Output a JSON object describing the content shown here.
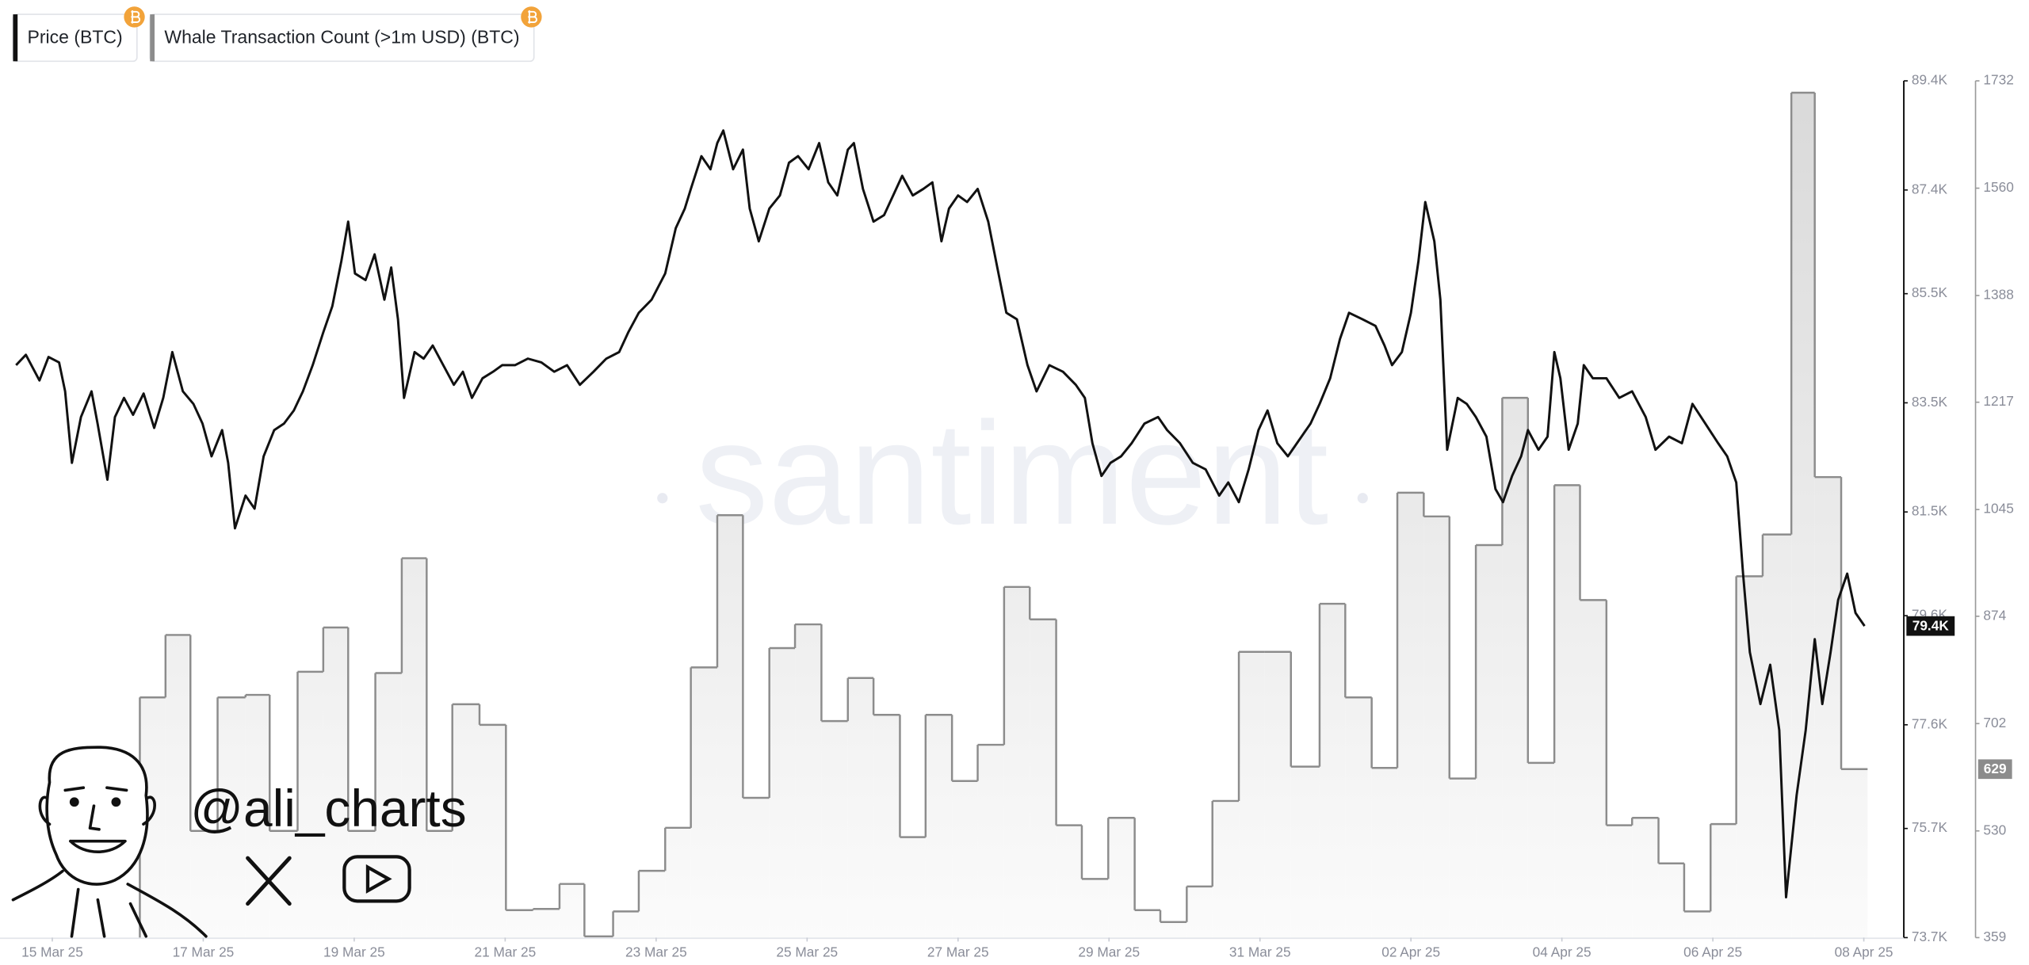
{
  "chart_data": {
    "type": "line",
    "legend": "top-left",
    "grid": false,
    "watermark": "santiment",
    "annotation": "@ali_charts",
    "xlim": [
      -0.52,
      24.53
    ],
    "xticks": [
      {
        "value": 0,
        "label": "15 Mar 25"
      },
      {
        "value": 2,
        "label": "17 Mar 25"
      },
      {
        "value": 4,
        "label": "19 Mar 25"
      },
      {
        "value": 6,
        "label": "21 Mar 25"
      },
      {
        "value": 8,
        "label": "23 Mar 25"
      },
      {
        "value": 10,
        "label": "25 Mar 25"
      },
      {
        "value": 12,
        "label": "27 Mar 25"
      },
      {
        "value": 14,
        "label": "29 Mar 25"
      },
      {
        "value": 16,
        "label": "31 Mar 25"
      },
      {
        "value": 18,
        "label": "02 Apr 25"
      },
      {
        "value": 20,
        "label": "04 Apr 25"
      },
      {
        "value": 22,
        "label": "06 Apr 25"
      },
      {
        "value": 24,
        "label": "08 Apr 25"
      }
    ],
    "ylim": [
      73.7,
      89.4
    ],
    "yticks": [
      {
        "value": 73.7,
        "label": "73.7K"
      },
      {
        "value": 75.7,
        "label": "75.7K"
      },
      {
        "value": 77.6,
        "label": "77.6K"
      },
      {
        "value": 79.6,
        "label": "79.6K"
      },
      {
        "value": 81.5,
        "label": "81.5K"
      },
      {
        "value": 83.5,
        "label": "83.5K"
      },
      {
        "value": 85.5,
        "label": "85.5K"
      },
      {
        "value": 87.4,
        "label": "87.4K"
      },
      {
        "value": 89.4,
        "label": "89.4K"
      }
    ],
    "y2lim": [
      359,
      1732
    ],
    "y2ticks": [
      359,
      530,
      702,
      874,
      1045,
      1217,
      1388,
      1560,
      1732
    ],
    "series": [
      {
        "name": "Price (BTC)",
        "color": "#111111",
        "axis": "y",
        "last_label": "79.4K",
        "x": [
          -0.48,
          -0.35,
          -0.17,
          -0.05,
          0.09,
          0.17,
          0.26,
          0.38,
          0.52,
          0.6,
          0.73,
          0.83,
          0.95,
          1.07,
          1.21,
          1.35,
          1.47,
          1.59,
          1.73,
          1.87,
          1.99,
          2.11,
          2.25,
          2.33,
          2.42,
          2.56,
          2.68,
          2.8,
          2.94,
          3.07,
          3.2,
          3.32,
          3.45,
          3.59,
          3.71,
          3.83,
          3.92,
          4.01,
          4.15,
          4.27,
          4.4,
          4.49,
          4.58,
          4.66,
          4.8,
          4.92,
          5.04,
          5.18,
          5.32,
          5.44,
          5.56,
          5.7,
          5.84,
          5.96,
          6.13,
          6.3,
          6.48,
          6.65,
          6.82,
          6.99,
          7.17,
          7.34,
          7.51,
          7.63,
          7.77,
          7.94,
          8.12,
          8.26,
          8.38,
          8.46,
          8.6,
          8.72,
          8.81,
          8.89,
          9.02,
          9.15,
          9.24,
          9.36,
          9.5,
          9.64,
          9.76,
          9.88,
          10.02,
          10.16,
          10.28,
          10.4,
          10.54,
          10.62,
          10.74,
          10.88,
          11.02,
          11.14,
          11.26,
          11.4,
          11.54,
          11.66,
          11.78,
          11.88,
          12.0,
          12.12,
          12.26,
          12.4,
          12.52,
          12.64,
          12.78,
          12.92,
          13.04,
          13.21,
          13.39,
          13.56,
          13.68,
          13.78,
          13.9,
          14.02,
          14.16,
          14.3,
          14.47,
          14.65,
          14.77,
          14.94,
          15.11,
          15.28,
          15.46,
          15.58,
          15.72,
          15.85,
          15.98,
          16.1,
          16.23,
          16.37,
          16.49,
          16.67,
          16.79,
          16.93,
          17.06,
          17.18,
          17.36,
          17.53,
          17.65,
          17.75,
          17.88,
          18.0,
          18.1,
          18.19,
          18.31,
          18.39,
          18.48,
          18.62,
          18.74,
          18.86,
          19.0,
          19.12,
          19.22,
          19.34,
          19.46,
          19.55,
          19.69,
          19.81,
          19.9,
          19.98,
          20.09,
          20.21,
          20.29,
          20.41,
          20.59,
          20.76,
          20.93,
          21.11,
          21.24,
          21.42,
          21.59,
          21.73,
          21.9,
          22.07,
          22.19,
          22.31,
          22.4,
          22.49,
          22.63,
          22.76,
          22.88,
          22.97,
          23.11,
          23.23,
          23.35,
          23.45,
          23.56,
          23.66,
          23.78,
          23.89,
          24.01
        ],
        "values": [
          84.19,
          84.38,
          83.91,
          84.34,
          84.24,
          83.71,
          82.4,
          83.24,
          83.71,
          83.12,
          82.09,
          83.24,
          83.59,
          83.28,
          83.67,
          83.04,
          83.59,
          84.43,
          83.71,
          83.48,
          83.12,
          82.52,
          83.0,
          82.4,
          81.2,
          81.8,
          81.56,
          82.52,
          83.0,
          83.12,
          83.36,
          83.71,
          84.19,
          84.79,
          85.27,
          86.1,
          86.82,
          85.87,
          85.75,
          86.22,
          85.39,
          85.98,
          85.03,
          83.59,
          84.43,
          84.31,
          84.55,
          84.19,
          83.83,
          84.07,
          83.59,
          83.95,
          84.07,
          84.19,
          84.19,
          84.31,
          84.24,
          84.07,
          84.19,
          83.83,
          84.07,
          84.31,
          84.43,
          84.79,
          85.15,
          85.39,
          85.87,
          86.7,
          87.06,
          87.42,
          88.02,
          87.78,
          88.26,
          88.49,
          87.78,
          88.14,
          87.06,
          86.46,
          87.06,
          87.3,
          87.9,
          88.02,
          87.78,
          88.26,
          87.54,
          87.3,
          88.14,
          88.26,
          87.42,
          86.82,
          86.94,
          87.3,
          87.66,
          87.3,
          87.42,
          87.54,
          86.46,
          87.06,
          87.3,
          87.18,
          87.42,
          86.82,
          85.98,
          85.15,
          85.03,
          84.19,
          83.71,
          84.19,
          84.07,
          83.83,
          83.59,
          82.76,
          82.16,
          82.4,
          82.52,
          82.76,
          83.12,
          83.24,
          83.0,
          82.76,
          82.4,
          82.28,
          81.8,
          82.04,
          81.68,
          82.28,
          83.0,
          83.36,
          82.76,
          82.52,
          82.76,
          83.12,
          83.48,
          83.95,
          84.67,
          85.15,
          85.03,
          84.91,
          84.55,
          84.19,
          84.43,
          85.15,
          86.1,
          87.18,
          86.46,
          85.39,
          82.64,
          83.59,
          83.48,
          83.24,
          82.88,
          81.92,
          81.68,
          82.16,
          82.52,
          83.0,
          82.64,
          82.88,
          84.43,
          83.95,
          82.64,
          83.12,
          84.19,
          83.95,
          83.95,
          83.59,
          83.71,
          83.24,
          82.64,
          82.88,
          82.76,
          83.48,
          83.12,
          82.76,
          82.52,
          82.04,
          80.37,
          78.93,
          77.98,
          78.7,
          77.5,
          74.44,
          76.31,
          77.5,
          79.17,
          77.98,
          78.93,
          79.89,
          80.37,
          79.65,
          79.41
        ]
      },
      {
        "name": "Whale Transaction Count (>1m USD) (BTC)",
        "color": "#8c8c8c",
        "axis": "y2",
        "step": true,
        "fill": true,
        "x": [
          1.16,
          1.5,
          1.83,
          2.19,
          2.56,
          2.88,
          3.25,
          3.59,
          3.92,
          4.28,
          4.63,
          4.96,
          5.3,
          5.66,
          6.01,
          6.37,
          6.72,
          7.05,
          7.43,
          7.77,
          8.12,
          8.46,
          8.81,
          9.15,
          9.5,
          9.84,
          10.19,
          10.54,
          10.88,
          11.23,
          11.57,
          11.92,
          12.26,
          12.61,
          12.95,
          13.3,
          13.64,
          13.99,
          14.34,
          14.68,
          15.03,
          15.37,
          15.72,
          16.06,
          16.41,
          16.79,
          17.13,
          17.48,
          17.82,
          18.17,
          18.51,
          18.86,
          19.21,
          19.55,
          19.9,
          20.24,
          20.59,
          20.93,
          21.28,
          21.62,
          21.97,
          22.31,
          22.66,
          23.04,
          23.35,
          23.7
        ],
        "values": [
          744,
          844,
          530,
          744,
          748,
          530,
          785,
          856,
          530,
          783,
          967,
          530,
          733,
          700,
          403,
          405,
          445,
          361,
          401,
          466,
          535,
          792,
          1036,
          583,
          823,
          861,
          706,
          775,
          716,
          520,
          716,
          610,
          668,
          921,
          869,
          539,
          453,
          551,
          403,
          384,
          441,
          578,
          817,
          817,
          633,
          894,
          744,
          631,
          1072,
          1034,
          614,
          988,
          1224,
          639,
          1084,
          900,
          539,
          551,
          478,
          401,
          541,
          938,
          1005,
          1713,
          1097,
          629
        ]
      }
    ]
  }
}
